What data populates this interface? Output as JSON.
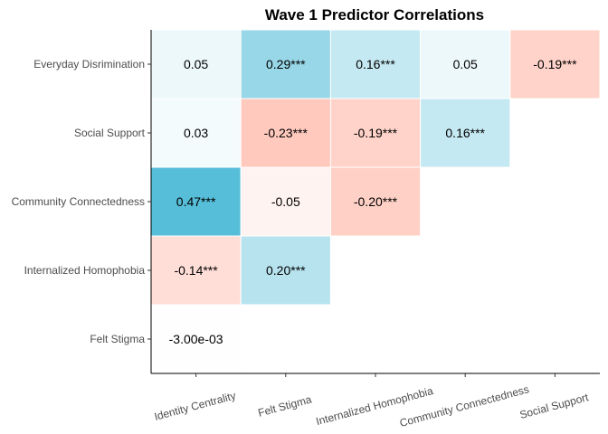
{
  "chart_data": {
    "type": "heatmap",
    "title": "Wave 1 Predictor Correlations",
    "x_categories": [
      "Identity Centrality",
      "Felt Stigma",
      "Internalized  Homophobia",
      "Community Connectedness",
      "Social Support"
    ],
    "y_categories": [
      "Felt Stigma",
      "Internalized Homophobia",
      "Community Connectedness",
      "Social Support",
      "Everyday Disrimination"
    ],
    "cells": [
      {
        "x": "Identity Centrality",
        "y": "Everyday Disrimination",
        "value": 0.05,
        "label": "0.05"
      },
      {
        "x": "Felt Stigma",
        "y": "Everyday Disrimination",
        "value": 0.29,
        "label": "0.29***"
      },
      {
        "x": "Internalized  Homophobia",
        "y": "Everyday Disrimination",
        "value": 0.16,
        "label": "0.16***"
      },
      {
        "x": "Community Connectedness",
        "y": "Everyday Disrimination",
        "value": 0.05,
        "label": "0.05"
      },
      {
        "x": "Social Support",
        "y": "Everyday Disrimination",
        "value": -0.19,
        "label": "-0.19***"
      },
      {
        "x": "Identity Centrality",
        "y": "Social Support",
        "value": 0.03,
        "label": "0.03"
      },
      {
        "x": "Felt Stigma",
        "y": "Social Support",
        "value": -0.23,
        "label": "-0.23***"
      },
      {
        "x": "Internalized  Homophobia",
        "y": "Social Support",
        "value": -0.19,
        "label": "-0.19***"
      },
      {
        "x": "Community Connectedness",
        "y": "Social Support",
        "value": 0.16,
        "label": "0.16***"
      },
      {
        "x": "Identity Centrality",
        "y": "Community Connectedness",
        "value": 0.47,
        "label": "0.47***"
      },
      {
        "x": "Felt Stigma",
        "y": "Community Connectedness",
        "value": -0.05,
        "label": "-0.05"
      },
      {
        "x": "Internalized  Homophobia",
        "y": "Community Connectedness",
        "value": -0.2,
        "label": "-0.20***"
      },
      {
        "x": "Identity Centrality",
        "y": "Internalized Homophobia",
        "value": -0.14,
        "label": "-0.14***"
      },
      {
        "x": "Felt Stigma",
        "y": "Internalized Homophobia",
        "value": 0.2,
        "label": "0.20***"
      },
      {
        "x": "Identity Centrality",
        "y": "Felt Stigma",
        "value": -0.003,
        "label": "-3.00e-03"
      }
    ],
    "colors": {
      "positive": "#4bbad6",
      "negative": "#ff8a70",
      "neutral": "#ffffff",
      "axis": "#000000",
      "tick_text": "#4d4d4d"
    },
    "grid": false,
    "legend": "none"
  }
}
